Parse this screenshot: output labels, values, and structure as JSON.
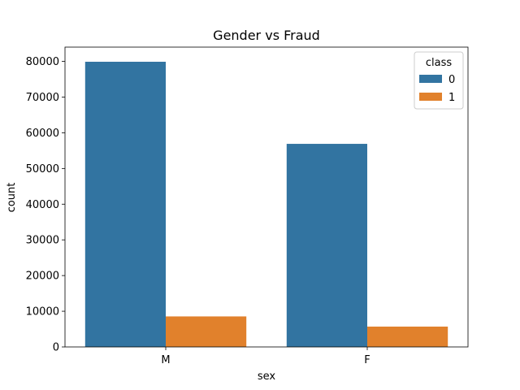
{
  "chart_data": {
    "type": "bar",
    "title": "Gender vs Fraud",
    "xlabel": "sex",
    "ylabel": "count",
    "categories": [
      "M",
      "F"
    ],
    "series": [
      {
        "name": "0",
        "values": [
          79900,
          56900
        ],
        "color": "#3274a1"
      },
      {
        "name": "1",
        "values": [
          8550,
          5700
        ],
        "color": "#e1812c"
      }
    ],
    "ylim": [
      0,
      84000
    ],
    "yticks": [
      0,
      10000,
      20000,
      30000,
      40000,
      50000,
      60000,
      70000,
      80000
    ],
    "legend": {
      "title": "class",
      "position": "top-right"
    },
    "grid": false
  }
}
